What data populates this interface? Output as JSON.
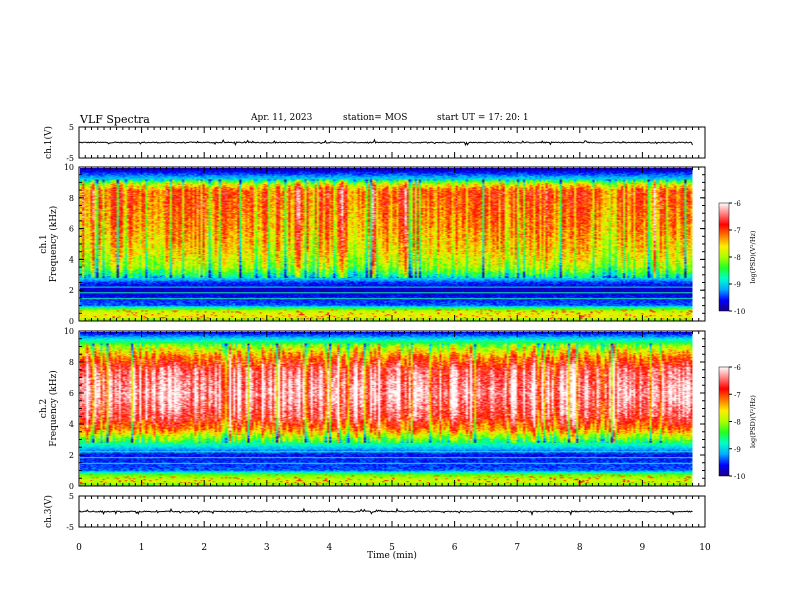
{
  "header": {
    "title": "VLF Spectra",
    "date": "Apr. 11, 2023",
    "station": "station= MOS",
    "start": "start  UT  =   17: 20: 1"
  },
  "colors": {
    "colormap": [
      "#1a0080",
      "#0000ff",
      "#00aaff",
      "#00ffcc",
      "#22ff22",
      "#aaff00",
      "#ffee00",
      "#ff7700",
      "#ff0000",
      "#ff8080",
      "#ffffff"
    ],
    "trace": "#000000",
    "frame": "#000000"
  },
  "chart_data": [
    {
      "type": "line",
      "name": "waveform-ch1",
      "ylabel": "ch.1(V)",
      "ylim": [
        -5,
        5
      ],
      "yticks": [
        "5",
        "-5"
      ],
      "xlim": [
        0,
        10
      ],
      "baseline_value": 0
    },
    {
      "type": "heatmap",
      "name": "spectrogram-ch1",
      "ylabel": "ch.1\nFrequency (kHz)",
      "ylim": [
        0,
        10
      ],
      "yticks": [
        "0",
        "2",
        "4",
        "6",
        "8",
        "10"
      ],
      "xlim": [
        0,
        10
      ],
      "colorbar": {
        "label": "log(PSD)(V²/Hz)",
        "range": [
          -10,
          -6
        ],
        "ticks": [
          "-6",
          "-7",
          "-8",
          "-9",
          "-10"
        ]
      },
      "band_profile": [
        {
          "f": 0.0,
          "v": -8.2
        },
        {
          "f": 0.3,
          "v": -7.6
        },
        {
          "f": 0.7,
          "v": -8.0
        },
        {
          "f": 1.0,
          "v": -9.4
        },
        {
          "f": 1.5,
          "v": -9.6
        },
        {
          "f": 2.0,
          "v": -9.8
        },
        {
          "f": 2.5,
          "v": -9.5
        },
        {
          "f": 3.0,
          "v": -8.6
        },
        {
          "f": 3.5,
          "v": -8.0
        },
        {
          "f": 4.5,
          "v": -7.6
        },
        {
          "f": 6.0,
          "v": -7.3
        },
        {
          "f": 7.5,
          "v": -7.1
        },
        {
          "f": 8.5,
          "v": -7.0
        },
        {
          "f": 9.0,
          "v": -7.8
        },
        {
          "f": 9.3,
          "v": -9.0
        },
        {
          "f": 10.0,
          "v": -9.9
        }
      ]
    },
    {
      "type": "heatmap",
      "name": "spectrogram-ch2",
      "ylabel": "ch.2\nFrequency (kHz)",
      "ylim": [
        0,
        10
      ],
      "yticks": [
        "0",
        "2",
        "4",
        "6",
        "8",
        "10"
      ],
      "xlim": [
        0,
        10
      ],
      "colorbar": {
        "label": "log(PSD)(V²/Hz)",
        "range": [
          -10,
          -6
        ],
        "ticks": [
          "-6",
          "-7",
          "-8",
          "-9",
          "-10"
        ]
      },
      "band_profile": [
        {
          "f": 0.0,
          "v": -8.2
        },
        {
          "f": 0.3,
          "v": -7.8
        },
        {
          "f": 0.7,
          "v": -8.2
        },
        {
          "f": 1.0,
          "v": -9.4
        },
        {
          "f": 2.0,
          "v": -9.6
        },
        {
          "f": 2.5,
          "v": -9.0
        },
        {
          "f": 3.0,
          "v": -8.3
        },
        {
          "f": 3.7,
          "v": -7.2
        },
        {
          "f": 4.5,
          "v": -6.6
        },
        {
          "f": 6.0,
          "v": -6.2
        },
        {
          "f": 7.5,
          "v": -6.5
        },
        {
          "f": 8.3,
          "v": -7.1
        },
        {
          "f": 9.0,
          "v": -7.9
        },
        {
          "f": 9.5,
          "v": -8.8
        },
        {
          "f": 10.0,
          "v": -9.7
        }
      ]
    },
    {
      "type": "line",
      "name": "waveform-ch3",
      "ylabel": "ch.3(V)",
      "ylim": [
        -5,
        5
      ],
      "yticks": [
        "5",
        "-5"
      ],
      "xlim": [
        0,
        10
      ],
      "baseline_value": 0
    }
  ],
  "x_axis": {
    "label": "Time  (min)",
    "ticks": [
      "0",
      "1",
      "2",
      "3",
      "4",
      "5",
      "6",
      "7",
      "8",
      "9",
      "10"
    ],
    "data_end": 9.8
  }
}
